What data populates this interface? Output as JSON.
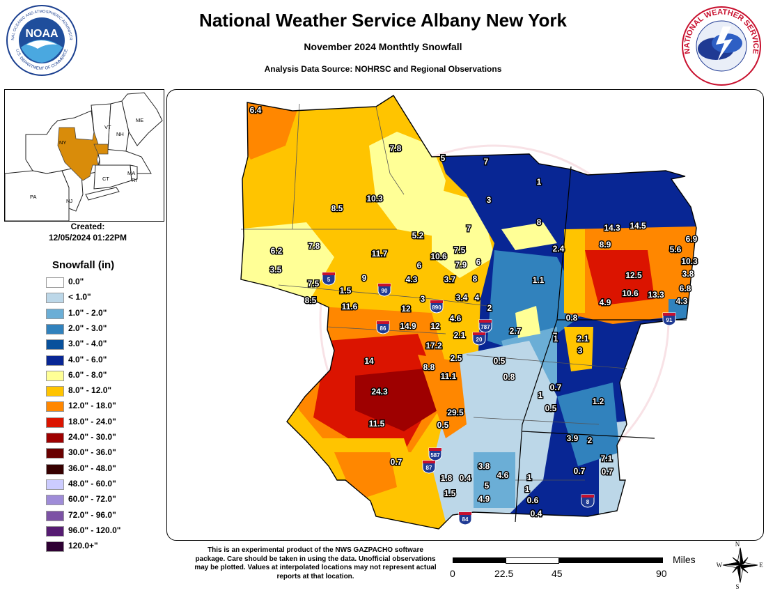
{
  "header": {
    "title": "National Weather Service Albany New York",
    "subtitle": "November 2024 Monthtly Snowfall",
    "source": "Analysis Data Source: NOHRSC and Regional Observations"
  },
  "logos": {
    "noaa_text": "NOAA",
    "noaa_ring_top": "NATIONAL OCEANIC AND ATMOSPHERIC ADMINISTRATION",
    "noaa_ring_bottom": "U.S. DEPARTMENT OF COMMERCE",
    "nws_ring": "NATIONAL WEATHER SERVICE"
  },
  "inset_map": {
    "labels": [
      "VT",
      "NH",
      "ME",
      "NY",
      "MA",
      "CT",
      "RI",
      "PA",
      "NJ"
    ],
    "highlight_color": "#d98c0a"
  },
  "created": {
    "label": "Created:",
    "value": "12/05/2024 01:22PM"
  },
  "legend": {
    "title": "Snowfall (in)",
    "items": [
      {
        "label": "0.0\"",
        "color": "#ffffff"
      },
      {
        "label": "< 1.0\"",
        "color": "#bcd7e8"
      },
      {
        "label": "1.0\" - 2.0\"",
        "color": "#6baed6"
      },
      {
        "label": "2.0\" - 3.0\"",
        "color": "#3182bd"
      },
      {
        "label": "3.0\" - 4.0\"",
        "color": "#08519c"
      },
      {
        "label": "4.0\" - 6.0\"",
        "color": "#082694"
      },
      {
        "label": "6.0\" - 8.0\"",
        "color": "#ffff96"
      },
      {
        "label": "8.0\" - 12.0\"",
        "color": "#ffc400"
      },
      {
        "label": "12.0\" - 18.0\"",
        "color": "#ff8700"
      },
      {
        "label": "18.0\" - 24.0\"",
        "color": "#db1400"
      },
      {
        "label": "24.0\" - 30.0\"",
        "color": "#9e0000"
      },
      {
        "label": "30.0\" - 36.0\"",
        "color": "#690000"
      },
      {
        "label": "36.0\" - 48.0\"",
        "color": "#360000"
      },
      {
        "label": "48.0\" - 60.0\"",
        "color": "#ccccff"
      },
      {
        "label": "60.0\" - 72.0\"",
        "color": "#9f8cd8"
      },
      {
        "label": "72.0\" - 96.0\"",
        "color": "#7c52a5"
      },
      {
        "label": "96.0\" - 120.0\"",
        "color": "#561c72"
      },
      {
        "label": "120.0+\"",
        "color": "#2e0033"
      }
    ]
  },
  "map": {
    "watermark": "NATIONAL WEATHER SERVICE  U.S. DEPARTMENT OF COMMERCE",
    "shields": [
      "5",
      "90",
      "890",
      "86",
      "787",
      "20",
      "587",
      "87",
      "84",
      "91",
      "8"
    ],
    "observations": [
      "6.4",
      "7.8",
      "5",
      "7",
      "1",
      "10.3",
      "8.5",
      "8",
      "3",
      "7",
      "5.2",
      "14.3",
      "14.5",
      "6.9",
      "8.9",
      "2.4",
      "5.6",
      "10.3",
      "7.8",
      "6.2",
      "11.7",
      "10.6",
      "7.5",
      "6",
      "3.5",
      "7.9",
      "6",
      "12.5",
      "3.8",
      "7.5",
      "1.5",
      "9",
      "4.3",
      "3.7",
      "8",
      "1.1",
      "10.6",
      "13.3",
      "6.8",
      "8.5",
      "11.6",
      "3",
      "3.4",
      "4",
      "4.9",
      "4.3",
      "12",
      "2",
      "0.8",
      "14.9",
      "12",
      "4.6",
      "2.7",
      "7",
      "2.1",
      "2.1",
      "1",
      "17.2",
      "3",
      "14",
      "8.8",
      "2.5",
      "0.5",
      "11.1",
      "0.8",
      "24.3",
      "0.7",
      "1",
      "0.5",
      "1.2",
      "29.5",
      "11.5",
      "0.5",
      "3.9",
      "2",
      "0.7",
      "3.8",
      "1.8",
      "0.4",
      "4.6",
      "7.1",
      "0.7",
      "0.7",
      "5",
      "1",
      "1.5",
      "4.9",
      "0.6",
      "1",
      "0.4"
    ]
  },
  "footer": {
    "disclaimer": "This is an experimental product of the NWS GAZPACHO software package. Care should be taken in using the data. Unofficial observations may be plotted. Values at interpolated locations may not represent actual reports at that location.",
    "scale_units": "Miles",
    "scale_ticks": [
      "0",
      "22.5",
      "45",
      "90"
    ],
    "compass": [
      "N",
      "S",
      "E",
      "W"
    ]
  }
}
